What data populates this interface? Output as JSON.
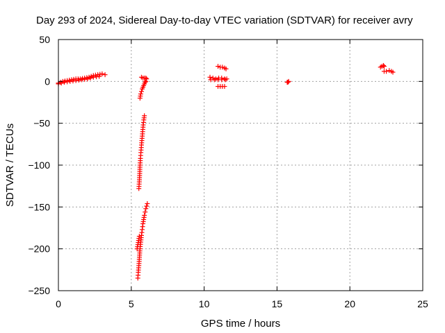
{
  "chart_data": {
    "type": "scatter",
    "title": "Day 293 of 2024, Sidereal Day-to-day VTEC variation (SDTVAR) for receiver avry",
    "xlabel": "GPS time / hours",
    "ylabel": "SDTVAR / TECUs",
    "xlim": [
      0,
      25
    ],
    "ylim": [
      -250,
      50
    ],
    "xticks": [
      0,
      5,
      10,
      15,
      20,
      25
    ],
    "yticks": [
      -250,
      -200,
      -150,
      -100,
      -50,
      0,
      50
    ],
    "grid": true,
    "marker": "plus",
    "color": "#ff0000",
    "series": [
      {
        "segments": [
          {
            "x": [
              0.0,
              0.3,
              0.6,
              0.9,
              1.2,
              1.5,
              1.8,
              2.1,
              2.4,
              2.7,
              3.0,
              3.2
            ],
            "y": [
              -2,
              0,
              1,
              2,
              3,
              3,
              4,
              5,
              7,
              8,
              9,
              8
            ]
          },
          {
            "x": [
              0.0,
              0.4,
              0.8,
              1.2,
              1.6,
              2.0,
              2.4,
              2.8
            ],
            "y": [
              -3,
              -1,
              0,
              1,
              2,
              3,
              5,
              6
            ]
          },
          {
            "x": [
              5.7,
              5.8,
              5.9,
              6.0,
              6.05
            ],
            "y": [
              5,
              4,
              4,
              4,
              3
            ]
          },
          {
            "x": [
              5.6,
              5.65,
              5.7,
              5.75,
              5.8,
              5.85,
              5.9,
              5.95,
              6.0
            ],
            "y": [
              -20,
              -15,
              -12,
              -9,
              -7,
              -5,
              -3,
              -1,
              0
            ]
          },
          {
            "x": [
              5.52,
              5.55,
              5.58,
              5.6,
              5.63,
              5.66,
              5.7,
              5.74,
              5.78,
              5.82,
              5.86,
              5.9
            ],
            "y": [
              -128,
              -120,
              -110,
              -100,
              -92,
              -85,
              -76,
              -68,
              -60,
              -52,
              -46,
              -41
            ]
          },
          {
            "x": [
              5.45,
              5.48,
              5.52,
              5.56,
              5.6,
              5.65,
              5.7,
              5.75,
              5.8,
              5.85,
              5.9,
              5.95,
              6.0,
              6.05,
              6.1
            ],
            "y": [
              -235,
              -228,
              -220,
              -210,
              -200,
              -192,
              -184,
              -177,
              -170,
              -165,
              -160,
              -156,
              -152,
              -149,
              -146
            ]
          },
          {
            "x": [
              5.4,
              5.45,
              5.5,
              5.55
            ],
            "y": [
              -200,
              -195,
              -190,
              -185
            ]
          },
          {
            "x": [
              10.4,
              10.6,
              10.8,
              11.0,
              11.2,
              11.4,
              11.55
            ],
            "y": [
              5,
              4,
              3,
              4,
              4,
              3,
              3
            ]
          },
          {
            "x": [
              10.45,
              10.7,
              10.95,
              11.2,
              11.45
            ],
            "y": [
              2,
              2,
              2,
              2,
              2
            ]
          },
          {
            "x": [
              10.95,
              11.1,
              11.25,
              11.4,
              11.5
            ],
            "y": [
              18,
              17,
              17,
              16,
              15
            ]
          },
          {
            "x": [
              10.95,
              11.1,
              11.25,
              11.4
            ],
            "y": [
              -6,
              -6,
              -6,
              -6
            ]
          },
          {
            "x": [
              15.7,
              15.75,
              15.8
            ],
            "y": [
              -1,
              -1,
              0
            ]
          },
          {
            "x": [
              22.1,
              22.2,
              22.3,
              22.35
            ],
            "y": [
              17,
              18,
              19,
              18
            ]
          },
          {
            "x": [
              22.35,
              22.5,
              22.7,
              22.85,
              22.95
            ],
            "y": [
              12,
              12,
              13,
              12,
              11
            ]
          }
        ]
      }
    ]
  }
}
